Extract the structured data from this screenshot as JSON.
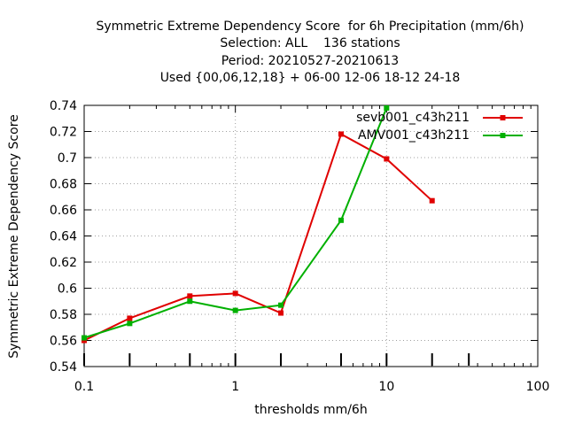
{
  "chart_data": {
    "type": "line",
    "title_lines": [
      "Symmetric Extreme Dependency Score  for 6h Precipitation (mm/6h)",
      "Selection: ALL    136 stations",
      "Period: 20210527-20210613",
      "Used {00,06,12,18} + 06-00 12-06 18-12 24-18"
    ],
    "xlabel": "thresholds mm/6h",
    "ylabel": "Symmetric Extreme Dependency Score",
    "xscale": "log",
    "xlim": [
      0.1,
      100
    ],
    "ylim": [
      0.54,
      0.74
    ],
    "x_ticks": [
      0.1,
      1,
      10,
      100
    ],
    "x_tick_labels": [
      "0.1",
      "1",
      "10",
      "100"
    ],
    "y_ticks": [
      0.54,
      0.56,
      0.58,
      0.6,
      0.62,
      0.64,
      0.66,
      0.68,
      0.7,
      0.72,
      0.74
    ],
    "y_tick_labels": [
      "0.54",
      "0.56",
      "0.58",
      "0.6",
      "0.62",
      "0.64",
      "0.66",
      "0.68",
      "0.7",
      "0.72",
      "0.74"
    ],
    "data_threshold_ticks": [
      0.1,
      0.2,
      0.5,
      1,
      2,
      5,
      10,
      20,
      35
    ],
    "grid": true,
    "legend_position": "top-right",
    "series": [
      {
        "name": "sevb001_c43h211",
        "color": "#e00000",
        "x": [
          0.1,
          0.2,
          0.5,
          1,
          2,
          5,
          10,
          20
        ],
        "y": [
          0.56,
          0.577,
          0.594,
          0.596,
          0.581,
          0.718,
          0.699,
          0.667
        ]
      },
      {
        "name": "AMV001_c43h211",
        "color": "#00b000",
        "x": [
          0.1,
          0.2,
          0.5,
          1,
          2,
          5,
          10
        ],
        "y": [
          0.562,
          0.573,
          0.59,
          0.583,
          0.587,
          0.652,
          0.738
        ]
      }
    ]
  }
}
